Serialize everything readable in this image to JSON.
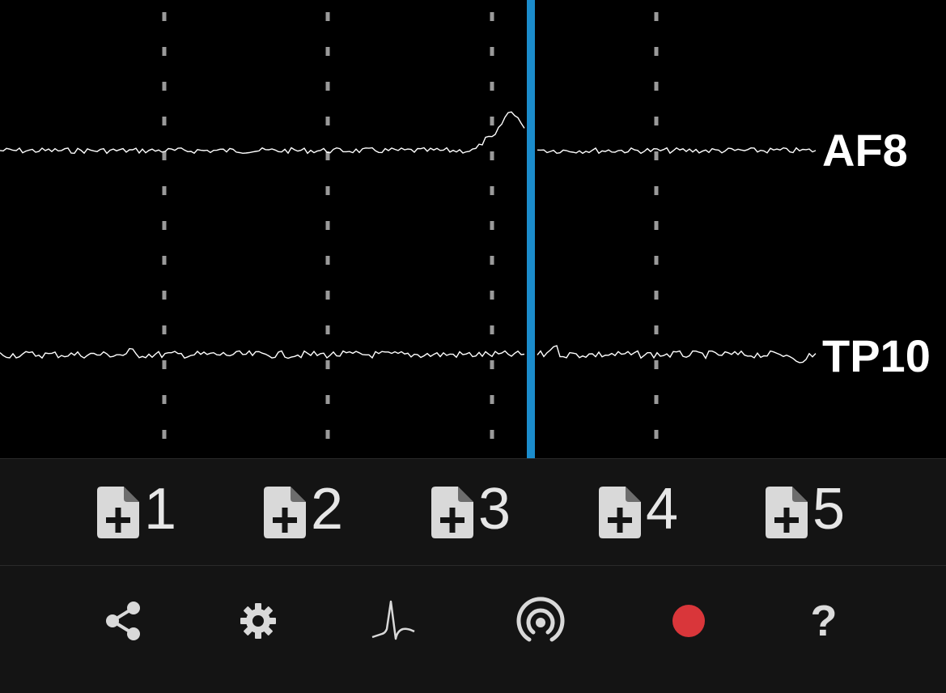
{
  "channels": [
    {
      "label": "AF8"
    },
    {
      "label": "TP10"
    }
  ],
  "colors": {
    "background": "#000000",
    "panel": "#141414",
    "trace": "#ffffff",
    "gridline": "#9a9a9a",
    "cursor": "#1b8ccc",
    "icon": "#d9d9d9",
    "record": "#d9363a"
  },
  "markers": [
    {
      "label": "1",
      "icon": "file-plus-icon"
    },
    {
      "label": "2",
      "icon": "file-plus-icon"
    },
    {
      "label": "3",
      "icon": "file-plus-icon"
    },
    {
      "label": "4",
      "icon": "file-plus-icon"
    },
    {
      "label": "5",
      "icon": "file-plus-icon"
    }
  ],
  "toolbar": {
    "share_icon": "share-icon",
    "settings_icon": "gear-icon",
    "view_icon": "waveform-icon",
    "stream_icon": "broadcast-icon",
    "record_icon": "record-icon",
    "help_label": "?"
  }
}
